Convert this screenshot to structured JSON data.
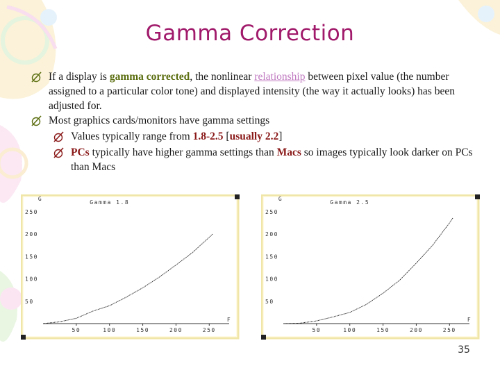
{
  "title": "Gamma Correction",
  "bullets": {
    "b1": {
      "pre": "If a display is ",
      "em1": "gamma corrected",
      "mid": ", the nonlinear ",
      "link": "relationship",
      "post": " between pixel value (the number assigned to a particular color tone) and displayed intensity (the way it actually looks) has been adjusted for."
    },
    "b2": {
      "text": "Most graphics cards/monitors have gamma settings"
    },
    "b3": {
      "pre": "Values typically range from ",
      "range": "1.8-2.5",
      "mid": " [",
      "usual": "usually 2.2",
      "post": "]"
    },
    "b4": {
      "pcs": "PCs",
      "mid": " typically have higher gamma settings than ",
      "macs": "Macs",
      "post": " so images typically look darker on PCs than Macs"
    }
  },
  "colors": {
    "title": "#a0196a",
    "link": "#c07ac0",
    "highlight_green": "#5b6e10",
    "highlight_red": "#8b1a1a",
    "chart_bg": "#fffbe6",
    "chart_border": "#f0e6a8"
  },
  "chart_data": [
    {
      "type": "line",
      "title": "Gamma 1.8",
      "ylabel": "G",
      "xlabel": "F",
      "xticks": [
        50,
        100,
        150,
        200,
        250
      ],
      "yticks": [
        50,
        100,
        150,
        200,
        250
      ],
      "xlim": [
        0,
        280
      ],
      "ylim": [
        0,
        270
      ],
      "gamma": 1.8,
      "series": [
        {
          "x": [
            0,
            25,
            50,
            75,
            100,
            125,
            150,
            175,
            200,
            225,
            250,
            255
          ],
          "y": [
            0,
            4,
            12,
            28,
            40,
            59,
            80,
            104,
            131,
            159,
            193,
            200
          ]
        }
      ]
    },
    {
      "type": "line",
      "title": "Gamma 2.5",
      "ylabel": "G",
      "xlabel": "F",
      "xticks": [
        50,
        100,
        150,
        200,
        250
      ],
      "yticks": [
        50,
        100,
        150,
        200,
        250
      ],
      "xlim": [
        0,
        280
      ],
      "ylim": [
        0,
        270
      ],
      "gamma": 2.5,
      "series": [
        {
          "x": [
            0,
            25,
            50,
            75,
            100,
            125,
            150,
            175,
            200,
            225,
            250,
            255
          ],
          "y": [
            0,
            1,
            6,
            15,
            25,
            43,
            68,
            97,
            135,
            176,
            225,
            236
          ]
        }
      ]
    }
  ],
  "page_number": "35"
}
